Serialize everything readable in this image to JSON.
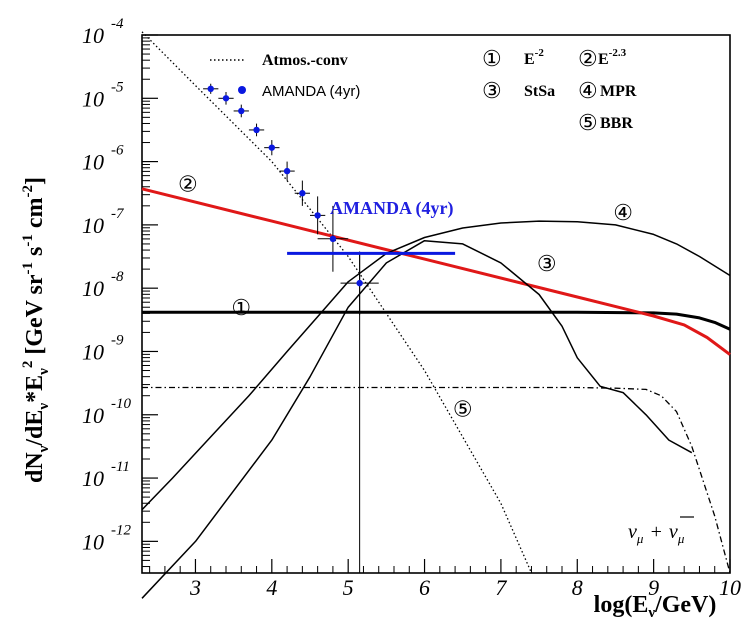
{
  "chart_data": {
    "type": "line",
    "title": "",
    "xlabel": "log(E",
    "xlabel_sub": "ν",
    "xlabel_end": "/GeV)",
    "ylabel_parts": [
      "dN",
      "ν",
      "/dE",
      "ν",
      "*E",
      "ν",
      "2",
      " [GeV sr",
      "-1",
      " s",
      "-1",
      " cm",
      "-2",
      "]"
    ],
    "xlim": [
      2.3,
      10
    ],
    "ylim_log10": [
      -12.5,
      -4
    ],
    "x_ticks": [
      "3",
      "4",
      "5",
      "6",
      "7",
      "8",
      "9",
      "10"
    ],
    "x_tick_values": [
      3,
      4,
      5,
      6,
      7,
      8,
      9,
      10
    ],
    "y_ticks": [
      {
        "base": "10",
        "exp": "-4",
        "value": -4
      },
      {
        "base": "10",
        "exp": "-5",
        "value": -5
      },
      {
        "base": "10",
        "exp": "-6",
        "value": -6
      },
      {
        "base": "10",
        "exp": "-7",
        "value": -7
      },
      {
        "base": "10",
        "exp": "-8",
        "value": -8
      },
      {
        "base": "10",
        "exp": "-9",
        "value": -9
      },
      {
        "base": "10",
        "exp": "-10",
        "value": -10
      },
      {
        "base": "10",
        "exp": "-11",
        "value": -11
      },
      {
        "base": "10",
        "exp": "-12",
        "value": -12
      }
    ],
    "series": [
      {
        "name": "Atmos.-conv",
        "style": "dotted",
        "color": "#000000",
        "x": [
          2.3,
          3.0,
          4.0,
          5.0,
          6.0,
          7.0,
          7.4
        ],
        "y_log10": [
          -3.95,
          -4.8,
          -6.0,
          -7.5,
          -9.3,
          -11.4,
          -12.5
        ]
      },
      {
        "name": "E^-2",
        "marker": "1",
        "style": "solid-thick",
        "color": "#000000",
        "x": [
          2.3,
          4.0,
          6.0,
          8.0,
          9.0,
          9.3,
          9.6,
          9.8,
          10.0
        ],
        "y_log10": [
          -8.38,
          -8.38,
          -8.38,
          -8.38,
          -8.39,
          -8.41,
          -8.47,
          -8.54,
          -8.65
        ]
      },
      {
        "name": "E^-2.3",
        "marker": "2",
        "style": "solid-thick",
        "color": "#e01818",
        "x": [
          2.3,
          4.0,
          6.0,
          8.0,
          9.0,
          9.4,
          9.7,
          10.0
        ],
        "y_log10": [
          -6.43,
          -6.94,
          -7.54,
          -8.14,
          -8.44,
          -8.58,
          -8.78,
          -9.05
        ]
      },
      {
        "name": "StSa",
        "marker": "3",
        "style": "solid",
        "color": "#000000",
        "x": [
          2.3,
          3.0,
          4.0,
          4.5,
          5.0,
          5.5,
          6.0,
          6.5,
          7.0,
          7.5,
          7.8,
          8.0,
          8.3,
          8.6,
          8.9,
          9.2,
          9.5
        ],
        "y_log10": [
          -12.9,
          -12.0,
          -10.4,
          -9.4,
          -8.3,
          -7.6,
          -7.25,
          -7.3,
          -7.6,
          -8.1,
          -8.6,
          -9.1,
          -9.55,
          -9.65,
          -10.0,
          -10.4,
          -10.6
        ]
      },
      {
        "name": "MPR",
        "marker": "4",
        "style": "solid",
        "color": "#000000",
        "x": [
          2.3,
          2.7,
          3.2,
          3.7,
          4.2,
          4.6,
          5.0,
          5.5,
          6.0,
          6.5,
          7.0,
          7.5,
          8.0,
          8.5,
          9.0,
          9.3,
          9.6,
          10.0
        ],
        "y_log10": [
          -11.5,
          -11.0,
          -10.35,
          -9.7,
          -9.0,
          -8.45,
          -7.9,
          -7.45,
          -7.2,
          -7.05,
          -6.97,
          -6.94,
          -6.95,
          -7.0,
          -7.15,
          -7.3,
          -7.5,
          -7.8
        ]
      },
      {
        "name": "BBR",
        "marker": "5",
        "style": "dash-dot",
        "color": "#000000",
        "x": [
          2.3,
          4.0,
          6.0,
          8.0,
          8.5,
          8.9,
          9.1,
          9.3,
          9.5,
          9.8,
          10.0
        ],
        "y_log10": [
          -9.57,
          -9.57,
          -9.57,
          -9.57,
          -9.58,
          -9.6,
          -9.7,
          -9.95,
          -10.5,
          -11.6,
          -12.5
        ]
      }
    ],
    "data_points": {
      "name": "AMANDA (4yr)",
      "color": "#0a18e0",
      "points": [
        {
          "x": 3.2,
          "y_log10": -4.85,
          "xerr": 0.1,
          "yerr": 0.08
        },
        {
          "x": 3.4,
          "y_log10": -5.0,
          "xerr": 0.1,
          "yerr": 0.1
        },
        {
          "x": 3.6,
          "y_log10": -5.2,
          "xerr": 0.1,
          "yerr": 0.1
        },
        {
          "x": 3.8,
          "y_log10": -5.5,
          "xerr": 0.1,
          "yerr": 0.1
        },
        {
          "x": 4.0,
          "y_log10": -5.78,
          "xerr": 0.1,
          "yerr": 0.12
        },
        {
          "x": 4.2,
          "y_log10": -6.15,
          "xerr": 0.1,
          "yerr": 0.15
        },
        {
          "x": 4.4,
          "y_log10": -6.5,
          "xerr": 0.1,
          "yerr": 0.2
        },
        {
          "x": 4.6,
          "y_log10": -6.85,
          "xerr": 0.1,
          "yerr": 0.3
        },
        {
          "x": 4.8,
          "y_log10": -7.22,
          "xerr": 0.2,
          "yerr": 0.52
        },
        {
          "x": 5.15,
          "y_log10": -7.92,
          "xerr": 0.25,
          "yerr": 0.5
        }
      ],
      "limit": {
        "x_from": 4.2,
        "x_to": 6.4,
        "y_log10": -7.45
      }
    },
    "limit_label": "AMANDA (4yr)",
    "vertical_line": {
      "x": 5.15
    },
    "legend": {
      "atmos_label": "Atmos.-conv",
      "amanda_label": "AMANDA (4yr)",
      "items": [
        {
          "num": "①",
          "label": "E",
          "sup": "-2"
        },
        {
          "num": "②",
          "label": "E",
          "sup": "-2.3"
        },
        {
          "num": "③",
          "label": "StSa",
          "sup": ""
        },
        {
          "num": "④",
          "label": "MPR",
          "sup": ""
        },
        {
          "num": "⑤",
          "label": "BBR",
          "sup": ""
        }
      ]
    },
    "curve_markers": [
      {
        "num": "①",
        "x": 3.6,
        "y_log10": -8.3
      },
      {
        "num": "②",
        "x": 2.9,
        "y_log10": -6.35
      },
      {
        "num": "③",
        "x": 7.6,
        "y_log10": -7.6
      },
      {
        "num": "④",
        "x": 8.6,
        "y_log10": -6.8
      },
      {
        "num": "⑤",
        "x": 6.5,
        "y_log10": -9.9
      }
    ],
    "neutrino_label": "νμ + νμ",
    "neutrino_label_parts": {
      "nu": "ν",
      "mu": "μ",
      "plus": "+"
    }
  }
}
